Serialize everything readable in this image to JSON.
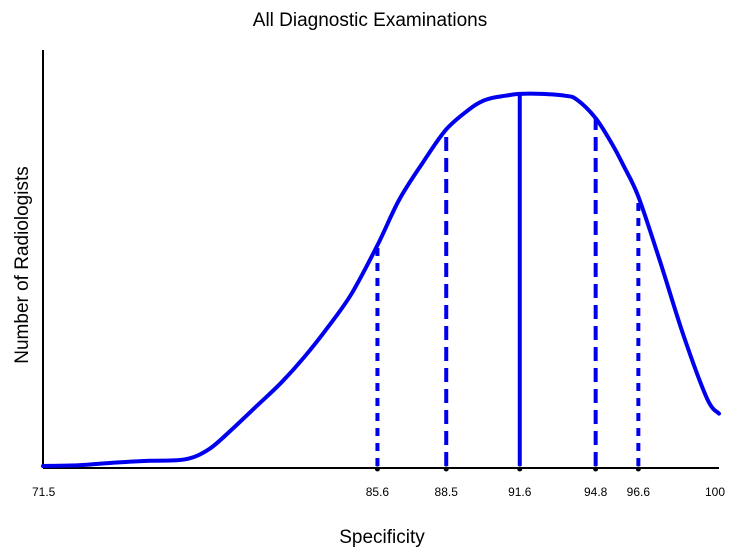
{
  "chart_data": {
    "type": "line",
    "title": "All Diagnostic Examinations",
    "xlabel": "Specificity",
    "ylabel": "Number of Radiologists",
    "xlim": [
      71.5,
      100
    ],
    "ylim": [
      0,
      1
    ],
    "grid": false,
    "legend": "none",
    "x_ticks": [
      {
        "value": 71.5,
        "label": "71.5"
      },
      {
        "value": 85.6,
        "label": "85.6"
      },
      {
        "value": 88.5,
        "label": "88.5"
      },
      {
        "value": 91.6,
        "label": "91.6"
      },
      {
        "value": 94.8,
        "label": "94.8"
      },
      {
        "value": 96.6,
        "label": "96.6"
      },
      {
        "value": 100,
        "label": "100"
      }
    ],
    "series": [
      {
        "color": "#0000ee",
        "x": [
          71.5,
          73.0,
          74.5,
          76.0,
          77.5,
          78.5,
          79.5,
          80.5,
          81.5,
          82.5,
          83.5,
          84.5,
          85.6,
          86.5,
          87.5,
          88.5,
          89.5,
          90.0,
          90.5,
          91.0,
          91.6,
          92.5,
          93.5,
          94.0,
          94.8,
          95.5,
          96.0,
          96.6,
          97.5,
          98.5,
          99.5,
          100.0
        ],
        "y": [
          0.0,
          0.002,
          0.009,
          0.014,
          0.018,
          0.045,
          0.1,
          0.16,
          0.22,
          0.29,
          0.37,
          0.46,
          0.59,
          0.71,
          0.81,
          0.9,
          0.955,
          0.975,
          0.985,
          0.99,
          0.995,
          0.995,
          0.99,
          0.98,
          0.93,
          0.86,
          0.8,
          0.72,
          0.55,
          0.35,
          0.18,
          0.14
        ]
      }
    ],
    "reference_lines": [
      {
        "x": 85.6,
        "y": 0.59,
        "style": "dotted"
      },
      {
        "x": 88.5,
        "y": 0.9,
        "style": "dashed"
      },
      {
        "x": 91.6,
        "y": 0.995,
        "style": "solid"
      },
      {
        "x": 94.8,
        "y": 0.93,
        "style": "dashed"
      },
      {
        "x": 96.6,
        "y": 0.72,
        "style": "dotted"
      }
    ],
    "colors": {
      "curve": "#0000ee",
      "axis": "#000000"
    }
  }
}
